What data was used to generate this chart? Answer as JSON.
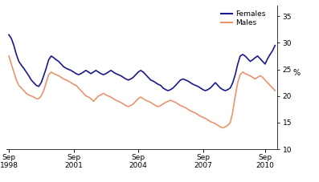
{
  "ylabel": "%",
  "ylim": [
    10,
    37
  ],
  "yticks": [
    10,
    15,
    20,
    25,
    30,
    35
  ],
  "female_color": "#1a1a8c",
  "male_color": "#e8956d",
  "line_width": 1.2,
  "females": [
    31.5,
    30.8,
    29.5,
    27.8,
    26.5,
    25.8,
    25.2,
    24.5,
    23.8,
    23.0,
    22.5,
    22.0,
    21.8,
    22.5,
    23.8,
    25.2,
    26.8,
    27.5,
    27.2,
    26.8,
    26.5,
    26.0,
    25.5,
    25.2,
    25.0,
    24.8,
    24.5,
    24.2,
    24.0,
    24.2,
    24.5,
    24.8,
    24.5,
    24.2,
    24.5,
    24.8,
    24.5,
    24.2,
    24.0,
    24.2,
    24.5,
    24.8,
    24.5,
    24.2,
    24.0,
    23.8,
    23.5,
    23.2,
    23.0,
    23.2,
    23.5,
    24.0,
    24.5,
    24.8,
    24.5,
    24.0,
    23.5,
    23.0,
    22.8,
    22.5,
    22.2,
    22.0,
    21.5,
    21.2,
    21.0,
    21.2,
    21.5,
    22.0,
    22.5,
    23.0,
    23.2,
    23.0,
    22.8,
    22.5,
    22.2,
    22.0,
    21.8,
    21.5,
    21.2,
    21.0,
    21.2,
    21.5,
    22.0,
    22.5,
    22.0,
    21.5,
    21.2,
    21.0,
    21.2,
    21.5,
    22.5,
    24.0,
    26.0,
    27.5,
    27.8,
    27.5,
    27.0,
    26.5,
    26.8,
    27.2,
    27.5,
    27.0,
    26.5,
    26.0,
    27.0,
    27.8,
    28.5,
    29.5
  ],
  "males": [
    27.5,
    26.0,
    24.5,
    23.0,
    22.0,
    21.5,
    21.0,
    20.5,
    20.2,
    20.0,
    19.8,
    19.5,
    19.5,
    20.0,
    21.0,
    22.5,
    24.0,
    24.5,
    24.2,
    24.0,
    23.8,
    23.5,
    23.2,
    23.0,
    22.8,
    22.5,
    22.2,
    22.0,
    21.5,
    21.0,
    20.5,
    20.0,
    19.8,
    19.5,
    19.0,
    19.5,
    20.0,
    20.2,
    20.5,
    20.2,
    20.0,
    19.8,
    19.5,
    19.2,
    19.0,
    18.8,
    18.5,
    18.2,
    18.0,
    18.2,
    18.5,
    19.0,
    19.5,
    19.8,
    19.5,
    19.2,
    19.0,
    18.8,
    18.5,
    18.2,
    18.0,
    18.2,
    18.5,
    18.8,
    19.0,
    19.2,
    19.0,
    18.8,
    18.5,
    18.2,
    18.0,
    17.8,
    17.5,
    17.2,
    17.0,
    16.8,
    16.5,
    16.2,
    16.0,
    15.8,
    15.5,
    15.2,
    15.0,
    14.8,
    14.5,
    14.2,
    14.0,
    14.2,
    14.5,
    15.0,
    17.0,
    20.0,
    22.5,
    24.0,
    24.5,
    24.2,
    24.0,
    23.8,
    23.5,
    23.2,
    23.5,
    23.8,
    23.5,
    23.0,
    22.5,
    22.0,
    21.5,
    21.0
  ],
  "tick_positions": [
    0,
    26,
    52,
    78,
    103
  ],
  "xtick_labels": [
    "Sep\n1998",
    "Sep\n2001",
    "Sep\n2004",
    "Sep\n2007",
    "Sep\n2010"
  ]
}
